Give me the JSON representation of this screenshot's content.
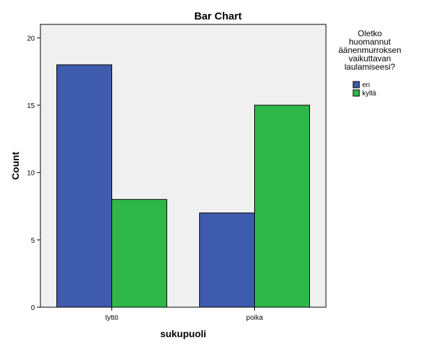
{
  "chart_data": {
    "type": "bar",
    "title": "Bar Chart",
    "xlabel": "sukupuoli",
    "ylabel": "Count",
    "categories": [
      "tyttö",
      "poika"
    ],
    "series": [
      {
        "name": "en",
        "values": [
          18,
          7
        ],
        "color": "#3f5bad"
      },
      {
        "name": "kyllä",
        "values": [
          8,
          15
        ],
        "color": "#2fb84a"
      }
    ],
    "ylim": [
      0,
      21
    ],
    "yticks": [
      0,
      5,
      10,
      15,
      20
    ],
    "grid": false,
    "plot_background": "#f0f0f0",
    "legend": {
      "title_lines": [
        "Oletko",
        "huomannut",
        "äänenmurroksen",
        "vaikuttavan",
        "laulamiseesi?"
      ],
      "position": "right"
    }
  }
}
